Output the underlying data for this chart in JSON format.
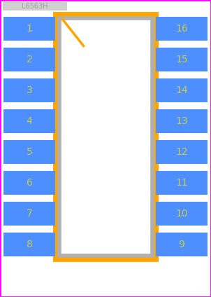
{
  "bg_color": "#ffffff",
  "border_color": "#ff00ff",
  "pin_color": "#4d8fff",
  "pin_label_color": "#cccc44",
  "body_orange_color": "#ffa500",
  "body_gray_color": "#b0b0b0",
  "body_white_fill": "#ffffff",
  "notch_color": "#ffa500",
  "title_color": "#a0a0a0",
  "title_bg": "#d0d0d0",
  "left_pins": [
    1,
    2,
    3,
    4,
    5,
    6,
    7,
    8
  ],
  "right_pins": [
    16,
    15,
    14,
    13,
    12,
    11,
    10,
    9
  ],
  "pin_fontsize": 10,
  "title_fontsize": 7,
  "title_text": "L6563H",
  "figsize": [
    3.02,
    4.24
  ],
  "dpi": 100
}
